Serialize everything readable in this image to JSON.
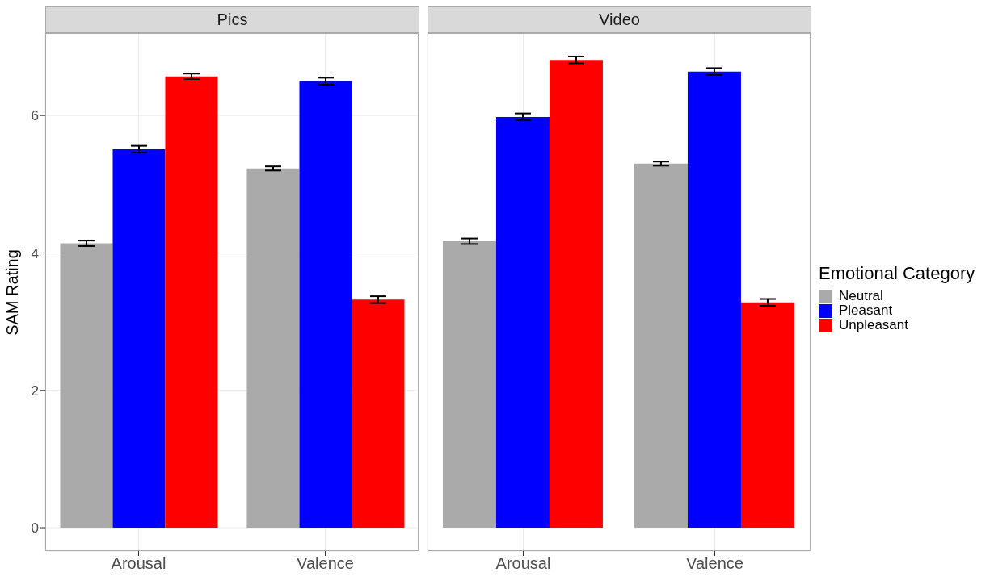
{
  "chart_data": [
    {
      "type": "bar",
      "title": "Pics",
      "ylabel": "SAM Rating",
      "categories": [
        "Arousal",
        "Valence"
      ],
      "ylim": [
        -0.34,
        7.2
      ],
      "yticks": [
        0,
        2,
        4,
        6
      ],
      "grid": true,
      "tick_labels": "xy",
      "series": [
        {
          "color": "#aaaaaa",
          "values": [
            4.14,
            5.23
          ],
          "errors": [
            0.04,
            0.03
          ]
        },
        {
          "color": "#0000ff",
          "values": [
            5.51,
            6.5
          ],
          "errors": [
            0.05,
            0.05
          ]
        },
        {
          "color": "#ff0000",
          "values": [
            6.57,
            3.32
          ],
          "errors": [
            0.04,
            0.05
          ]
        }
      ]
    },
    {
      "type": "bar",
      "title": "Video",
      "categories": [
        "Arousal",
        "Valence"
      ],
      "ylim": [
        -0.34,
        7.2
      ],
      "yticks": [
        0,
        2,
        4,
        6
      ],
      "grid": true,
      "tick_labels": "x",
      "legend": "right",
      "legend_title": "Emotional Category",
      "series": [
        {
          "name": "Neutral",
          "color": "#aaaaaa",
          "values": [
            4.17,
            5.3
          ],
          "errors": [
            0.04,
            0.03
          ]
        },
        {
          "name": "Pleasant",
          "color": "#0000ff",
          "values": [
            5.98,
            6.64
          ],
          "errors": [
            0.05,
            0.05
          ]
        },
        {
          "name": "Unpleasant",
          "color": "#ff0000",
          "values": [
            6.81,
            3.28
          ],
          "errors": [
            0.05,
            0.05
          ]
        }
      ]
    }
  ]
}
